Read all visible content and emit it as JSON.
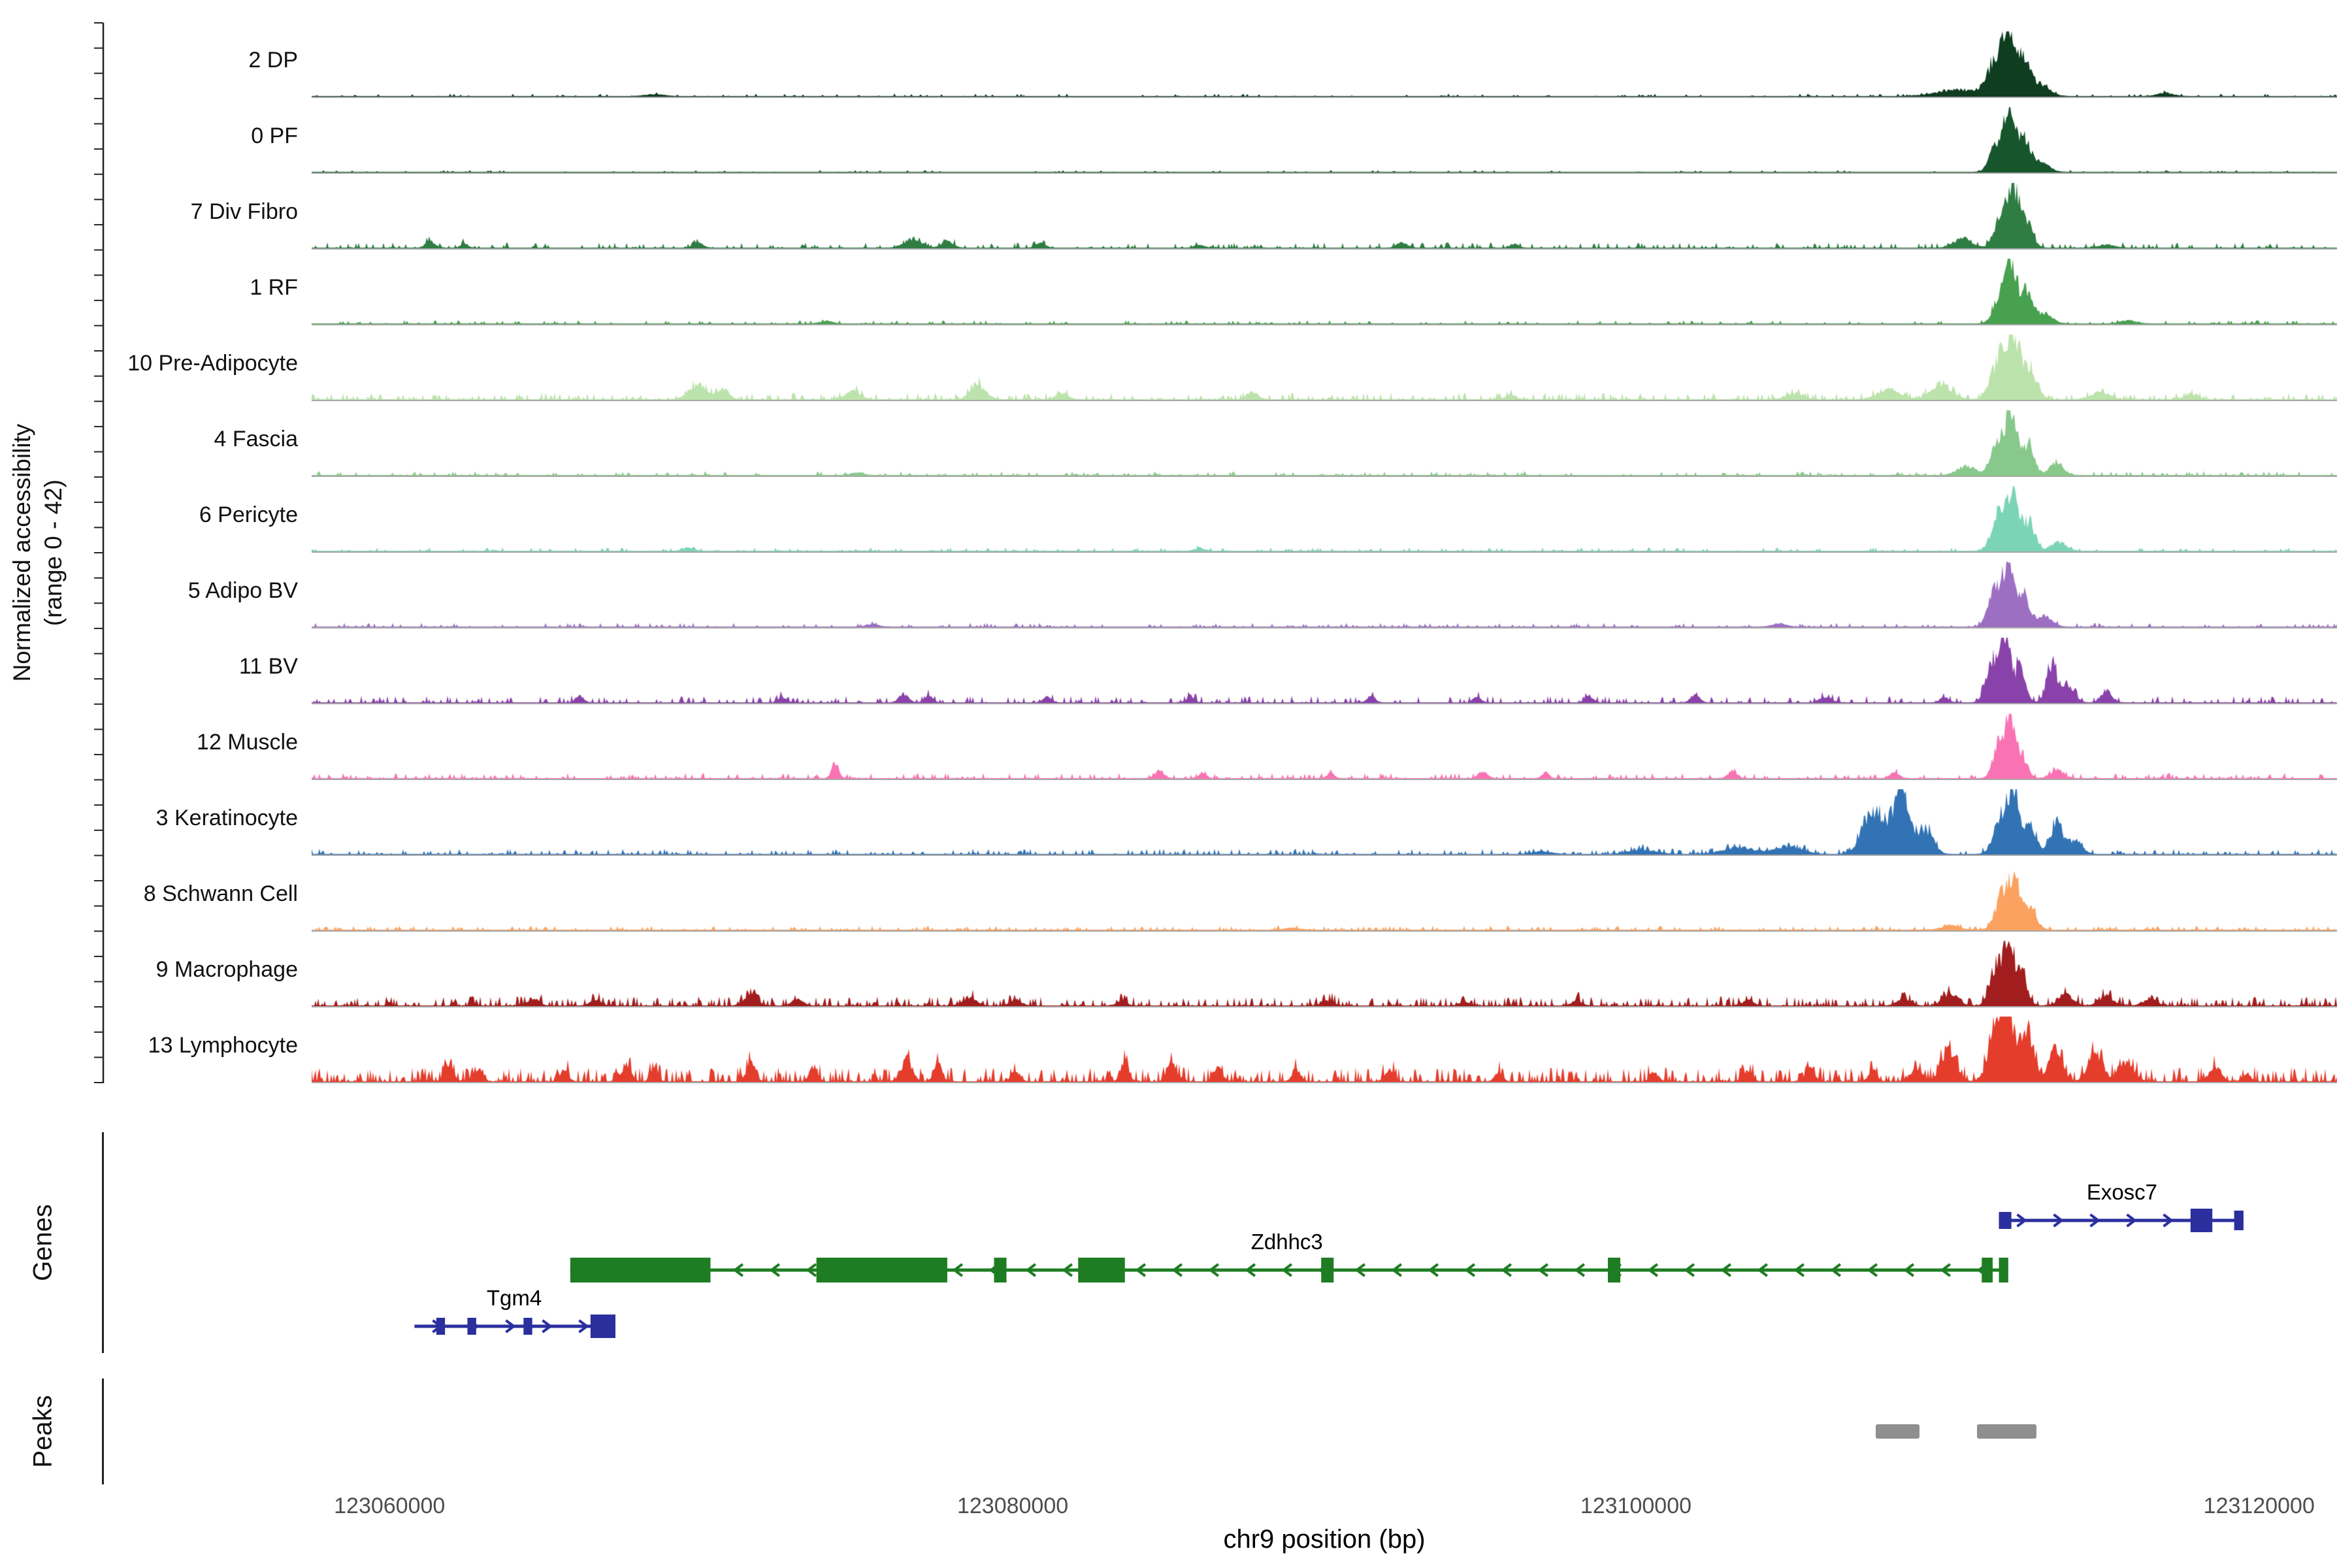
{
  "figure": {
    "y_axis_label_line1": "Normalized accessibility",
    "y_axis_label_line2": "(range 0 - 42)",
    "genes_section_label": "Genes",
    "peaks_section_label": "Peaks",
    "x_axis_title": "chr9 position (bp)",
    "baseline_color": "#a8a8a8",
    "axis_color": "#222222",
    "peak_color": "#8f8f8f"
  },
  "chart_data": {
    "type": "area",
    "title": "",
    "xlabel": "chr9 position (bp)",
    "ylabel": "Normalized accessibility (range 0 - 42)",
    "x_domain_bp": [
      123057500,
      123122500
    ],
    "x_ticks": [
      123060000,
      123080000,
      123100000,
      123120000
    ],
    "y_range_per_track": [
      0,
      42
    ],
    "tracks": [
      {
        "label": "2 DP",
        "color": "#0f3d20",
        "noise": {
          "amp": 0.04,
          "density": 0.1
        },
        "peaks": [
          [
            123110400,
            0.1,
            700
          ],
          [
            123111550,
            0.55,
            260
          ],
          [
            123111950,
            0.97,
            170
          ],
          [
            123112400,
            0.6,
            220
          ],
          [
            123113000,
            0.18,
            280
          ],
          [
            123117000,
            0.05,
            250
          ],
          [
            123068500,
            0.03,
            300
          ]
        ]
      },
      {
        "label": "0 PF",
        "color": "#17562c",
        "noise": {
          "amp": 0.03,
          "density": 0.08
        },
        "peaks": [
          [
            123111600,
            0.45,
            220
          ],
          [
            123112000,
            0.93,
            160
          ],
          [
            123112450,
            0.5,
            200
          ],
          [
            123113000,
            0.14,
            260
          ]
        ]
      },
      {
        "label": "7 Div Fibro",
        "color": "#2f7d42",
        "noise": {
          "amp": 0.08,
          "density": 0.22
        },
        "peaks": [
          [
            123111750,
            0.5,
            220
          ],
          [
            123112100,
            0.86,
            160
          ],
          [
            123112500,
            0.45,
            200
          ],
          [
            123110500,
            0.14,
            280
          ],
          [
            123115100,
            0.05,
            250
          ],
          [
            123061300,
            0.1,
            140
          ],
          [
            123062400,
            0.07,
            110
          ],
          [
            123069900,
            0.07,
            160
          ],
          [
            123076800,
            0.14,
            260
          ],
          [
            123077900,
            0.11,
            180
          ],
          [
            123080900,
            0.07,
            150
          ],
          [
            123086000,
            0.05,
            150
          ],
          [
            123092500,
            0.08,
            160
          ],
          [
            123096100,
            0.06,
            130
          ]
        ]
      },
      {
        "label": "1 RF",
        "color": "#47a14f",
        "noise": {
          "amp": 0.05,
          "density": 0.15
        },
        "peaks": [
          [
            123111700,
            0.45,
            210
          ],
          [
            123112050,
            0.9,
            160
          ],
          [
            123112500,
            0.48,
            200
          ],
          [
            123113100,
            0.15,
            260
          ],
          [
            123115800,
            0.05,
            250
          ],
          [
            123074000,
            0.04,
            200
          ]
        ]
      },
      {
        "label": "10 Pre-Adipocyte",
        "color": "#bce3ab",
        "noise": {
          "amp": 0.1,
          "density": 0.3
        },
        "peaks": [
          [
            123111650,
            0.6,
            250
          ],
          [
            123112100,
            0.96,
            190
          ],
          [
            123112600,
            0.5,
            240
          ],
          [
            123109800,
            0.22,
            350
          ],
          [
            123108100,
            0.15,
            350
          ],
          [
            123069900,
            0.24,
            280
          ],
          [
            123070700,
            0.16,
            180
          ],
          [
            123074900,
            0.13,
            220
          ],
          [
            123078900,
            0.2,
            240
          ],
          [
            123081600,
            0.1,
            180
          ],
          [
            123087700,
            0.1,
            180
          ],
          [
            123096000,
            0.07,
            160
          ],
          [
            123105100,
            0.1,
            260
          ],
          [
            123114900,
            0.11,
            280
          ],
          [
            123117800,
            0.07,
            220
          ]
        ]
      },
      {
        "label": "4 Fascia",
        "color": "#88c98b",
        "noise": {
          "amp": 0.06,
          "density": 0.18
        },
        "peaks": [
          [
            123111650,
            0.55,
            220
          ],
          [
            123112050,
            0.9,
            160
          ],
          [
            123112550,
            0.48,
            210
          ],
          [
            123110600,
            0.14,
            280
          ],
          [
            123113500,
            0.18,
            220
          ],
          [
            123075000,
            0.04,
            200
          ]
        ]
      },
      {
        "label": "6 Pericyte",
        "color": "#7cd4b6",
        "noise": {
          "amp": 0.05,
          "density": 0.15
        },
        "peaks": [
          [
            123111650,
            0.58,
            220
          ],
          [
            123112100,
            0.88,
            170
          ],
          [
            123112600,
            0.45,
            210
          ],
          [
            123113600,
            0.13,
            230
          ],
          [
            123069600,
            0.05,
            180
          ],
          [
            123086000,
            0.04,
            160
          ]
        ]
      },
      {
        "label": "5 Adipo BV",
        "color": "#9d6fc3",
        "noise": {
          "amp": 0.06,
          "density": 0.18
        },
        "peaks": [
          [
            123111550,
            0.6,
            220
          ],
          [
            123111950,
            0.9,
            160
          ],
          [
            123112400,
            0.52,
            200
          ],
          [
            123113100,
            0.18,
            240
          ],
          [
            123104600,
            0.05,
            220
          ],
          [
            123075500,
            0.04,
            180
          ]
        ]
      },
      {
        "label": "11 BV",
        "color": "#8a42ab",
        "noise": {
          "amp": 0.1,
          "density": 0.25
        },
        "peaks": [
          [
            123111450,
            0.68,
            200
          ],
          [
            123111850,
            0.97,
            150
          ],
          [
            123112300,
            0.5,
            190
          ],
          [
            123113350,
            0.62,
            170
          ],
          [
            123113900,
            0.28,
            190
          ],
          [
            123115100,
            0.18,
            170
          ],
          [
            123106100,
            0.09,
            180
          ],
          [
            123066100,
            0.1,
            130
          ],
          [
            123072600,
            0.08,
            130
          ],
          [
            123076500,
            0.13,
            150
          ],
          [
            123077300,
            0.1,
            130
          ],
          [
            123081100,
            0.1,
            130
          ],
          [
            123085700,
            0.08,
            130
          ],
          [
            123091500,
            0.1,
            130
          ],
          [
            123094900,
            0.08,
            130
          ],
          [
            123098500,
            0.1,
            130
          ],
          [
            123101900,
            0.12,
            140
          ],
          [
            123109900,
            0.08,
            140
          ]
        ]
      },
      {
        "label": "12 Muscle",
        "color": "#f973b4",
        "noise": {
          "amp": 0.08,
          "density": 0.22
        },
        "peaks": [
          [
            123111650,
            0.52,
            180
          ],
          [
            123111980,
            0.88,
            140
          ],
          [
            123112350,
            0.4,
            180
          ],
          [
            123113500,
            0.13,
            200
          ],
          [
            123074300,
            0.24,
            110
          ],
          [
            123084700,
            0.11,
            140
          ],
          [
            123086100,
            0.09,
            110
          ],
          [
            123095100,
            0.11,
            140
          ],
          [
            123097100,
            0.09,
            110
          ],
          [
            123103100,
            0.11,
            140
          ],
          [
            123108300,
            0.09,
            140
          ],
          [
            123090200,
            0.08,
            110
          ]
        ]
      },
      {
        "label": "3 Keratinocyte",
        "color": "#3273b5",
        "noise": {
          "amp": 0.08,
          "density": 0.25
        },
        "peaks": [
          [
            123107600,
            0.72,
            320
          ],
          [
            123108500,
            0.95,
            280
          ],
          [
            123109300,
            0.38,
            240
          ],
          [
            123111750,
            0.6,
            240
          ],
          [
            123112150,
            0.8,
            180
          ],
          [
            123112650,
            0.42,
            210
          ],
          [
            123113500,
            0.52,
            190
          ],
          [
            123114100,
            0.22,
            210
          ],
          [
            123104900,
            0.12,
            420
          ],
          [
            123103300,
            0.1,
            500
          ],
          [
            123100200,
            0.07,
            420
          ],
          [
            123097000,
            0.04,
            300
          ]
        ]
      },
      {
        "label": "8 Schwann Cell",
        "color": "#fba260",
        "noise": {
          "amp": 0.06,
          "density": 0.25
        },
        "peaks": [
          [
            123111750,
            0.52,
            210
          ],
          [
            123112150,
            0.76,
            170
          ],
          [
            123112650,
            0.32,
            210
          ],
          [
            123110100,
            0.07,
            280
          ],
          [
            123089000,
            0.03,
            250
          ]
        ]
      },
      {
        "label": "9 Macrophage",
        "color": "#a21d1d",
        "noise": {
          "amp": 0.14,
          "density": 0.4
        },
        "peaks": [
          [
            123111550,
            0.6,
            190
          ],
          [
            123111950,
            0.95,
            150
          ],
          [
            123112350,
            0.5,
            190
          ],
          [
            123110100,
            0.2,
            230
          ],
          [
            123113800,
            0.17,
            230
          ],
          [
            123115100,
            0.14,
            230
          ],
          [
            123116500,
            0.09,
            230
          ],
          [
            123064600,
            0.11,
            180
          ],
          [
            123066600,
            0.09,
            170
          ],
          [
            123071600,
            0.14,
            220
          ],
          [
            123073100,
            0.1,
            180
          ],
          [
            123078600,
            0.12,
            220
          ],
          [
            123080100,
            0.09,
            180
          ],
          [
            123083500,
            0.07,
            170
          ],
          [
            123090100,
            0.08,
            180
          ],
          [
            123094500,
            0.06,
            160
          ],
          [
            123098100,
            0.07,
            170
          ],
          [
            123103600,
            0.08,
            180
          ],
          [
            123108600,
            0.1,
            220
          ]
        ]
      },
      {
        "label": "13 Lymphocyte",
        "color": "#e53d2c",
        "noise": {
          "amp": 0.22,
          "density": 0.45
        },
        "peaks": [
          [
            123111550,
            0.8,
            230
          ],
          [
            123111950,
            1.0,
            180
          ],
          [
            123112550,
            0.7,
            230
          ],
          [
            123113450,
            0.5,
            200
          ],
          [
            123114750,
            0.45,
            230
          ],
          [
            123115750,
            0.3,
            230
          ],
          [
            123110050,
            0.5,
            230
          ],
          [
            123109000,
            0.2,
            200
          ],
          [
            123061900,
            0.28,
            140
          ],
          [
            123062900,
            0.22,
            110
          ],
          [
            123065600,
            0.18,
            130
          ],
          [
            123067600,
            0.28,
            140
          ],
          [
            123068500,
            0.22,
            110
          ],
          [
            123071600,
            0.28,
            140
          ],
          [
            123073600,
            0.22,
            130
          ],
          [
            123076600,
            0.33,
            180
          ],
          [
            123077600,
            0.27,
            130
          ],
          [
            123080100,
            0.18,
            130
          ],
          [
            123083600,
            0.27,
            130
          ],
          [
            123085100,
            0.33,
            140
          ],
          [
            123086600,
            0.22,
            130
          ],
          [
            123089100,
            0.18,
            130
          ],
          [
            123092100,
            0.18,
            130
          ],
          [
            123095600,
            0.14,
            120
          ],
          [
            123100600,
            0.14,
            130
          ],
          [
            123103600,
            0.18,
            130
          ],
          [
            123105600,
            0.22,
            130
          ],
          [
            123107600,
            0.18,
            130
          ],
          [
            123118600,
            0.22,
            180
          ],
          [
            123119600,
            0.13,
            130
          ]
        ]
      }
    ],
    "genes": [
      {
        "name": "Exosc7",
        "color": "#2b2f9e",
        "strand": "+",
        "start": 123111650,
        "end": 123119500,
        "label_bp": 123115600,
        "row": 0,
        "exons": [
          [
            123111650,
            123112050,
            26
          ],
          [
            123117800,
            123118500,
            36
          ],
          [
            123119200,
            123119500,
            30
          ]
        ]
      },
      {
        "name": "Zdhhc3",
        "color": "#1e7d22",
        "strand": "-",
        "start": 123065800,
        "end": 123111950,
        "label_bp": 123088800,
        "row": 1,
        "exons": [
          [
            123065800,
            123070300,
            38
          ],
          [
            123073700,
            123077900,
            38
          ],
          [
            123079400,
            123079800,
            38
          ],
          [
            123082100,
            123083600,
            38
          ],
          [
            123089900,
            123090300,
            38
          ],
          [
            123099100,
            123099500,
            38
          ],
          [
            123111100,
            123111450,
            38
          ],
          [
            123111650,
            123111950,
            38
          ]
        ]
      },
      {
        "name": "Tgm4",
        "color": "#2b2f9e",
        "strand": "+",
        "start": 123060800,
        "end": 123067250,
        "label_bp": 123064000,
        "row": 2,
        "exons": [
          [
            123061500,
            123061780,
            26
          ],
          [
            123062500,
            123062780,
            26
          ],
          [
            123064300,
            123064580,
            26
          ],
          [
            123066450,
            123067250,
            36
          ]
        ]
      }
    ],
    "peak_regions": [
      [
        123107700,
        123109100
      ],
      [
        123110950,
        123112850
      ]
    ]
  }
}
